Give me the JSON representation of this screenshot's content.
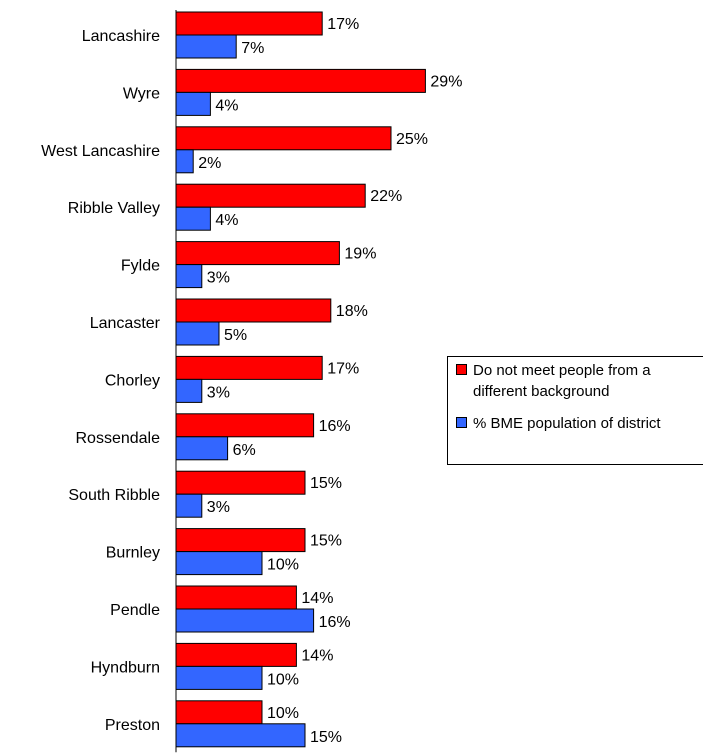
{
  "chart_data": {
    "type": "bar",
    "orientation": "horizontal",
    "categories": [
      "Lancashire",
      "Wyre",
      "West Lancashire",
      "Ribble Valley",
      "Fylde",
      "Lancaster",
      "Chorley",
      "Rossendale",
      "South Ribble",
      "Burnley",
      "Pendle",
      "Hyndburn",
      "Preston"
    ],
    "series": [
      {
        "name": "Do not meet people from a different background",
        "color": "#ff0000",
        "values": [
          17,
          29,
          25,
          22,
          19,
          18,
          17,
          16,
          15,
          15,
          14,
          14,
          10
        ],
        "labels": [
          "17%",
          "29%",
          "25%",
          "22%",
          "19%",
          "18%",
          "17%",
          "16%",
          "15%",
          "15%",
          "14%",
          "14%",
          "10%"
        ]
      },
      {
        "name": "% BME population of district",
        "color": "#3366ff",
        "values": [
          7,
          4,
          2,
          4,
          3,
          5,
          3,
          6,
          3,
          10,
          16,
          10,
          15
        ],
        "labels": [
          "7%",
          "4%",
          "2%",
          "4%",
          "3%",
          "5%",
          "3%",
          "6%",
          "3%",
          "10%",
          "16%",
          "10%",
          "15%"
        ]
      }
    ],
    "legend": {
      "position": "right",
      "items": [
        {
          "lines": [
            "Do not meet people from a",
            "different background"
          ],
          "color": "#ff0000"
        },
        {
          "lines": [
            "% BME population of district"
          ],
          "color": "#3366ff"
        }
      ]
    },
    "xlim": [
      0,
      33
    ],
    "grid": false,
    "title": "",
    "xlabel": "",
    "ylabel": ""
  }
}
